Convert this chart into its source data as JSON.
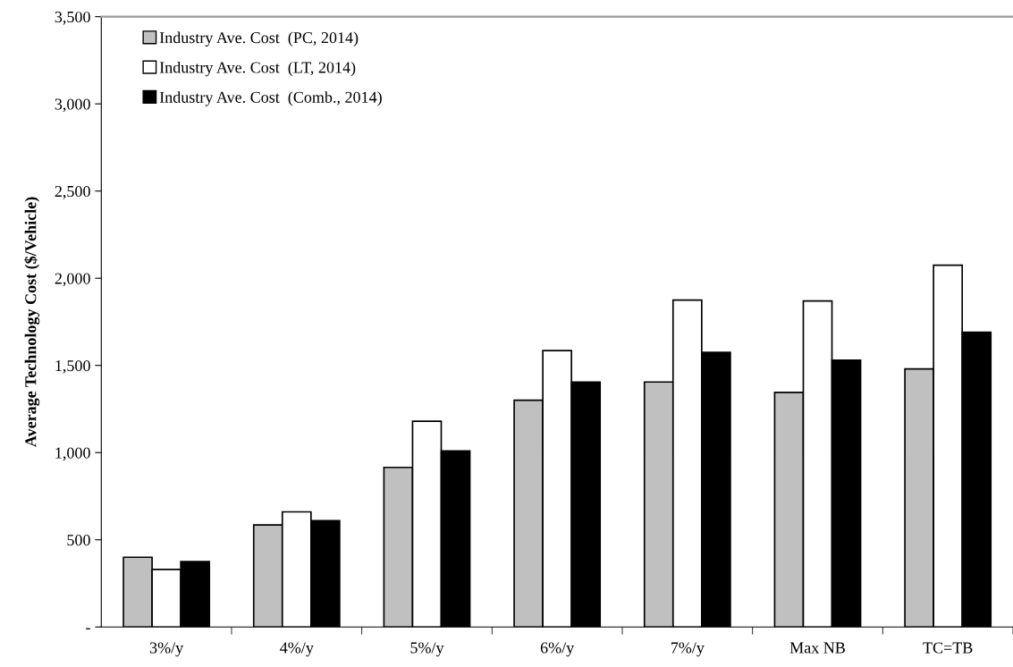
{
  "chart_data": {
    "type": "bar",
    "ylabel": "Average Technology Cost ($/Vehicle)",
    "categories": [
      "3%/y",
      "4%/y",
      "5%/y",
      "6%/y",
      "7%/y",
      "Max NB",
      "TC=TB"
    ],
    "series": [
      {
        "name": "Industry Ave. Cost  (PC, 2014)",
        "color": "#c0c0c0",
        "values": [
          400,
          585,
          915,
          1300,
          1405,
          1345,
          1480
        ]
      },
      {
        "name": "Industry Ave. Cost  (LT, 2014)",
        "color": "#ffffff",
        "values": [
          330,
          660,
          1180,
          1585,
          1875,
          1870,
          2075
        ]
      },
      {
        "name": "Industry Ave. Cost  (Comb., 2014)",
        "color": "#000000",
        "values": [
          375,
          610,
          1010,
          1405,
          1575,
          1530,
          1690
        ]
      }
    ],
    "ylim": [
      0,
      3500
    ],
    "yticks": [
      {
        "value": 0,
        "label": "-"
      },
      {
        "value": 500,
        "label": "500"
      },
      {
        "value": 1000,
        "label": "1,000"
      },
      {
        "value": 1500,
        "label": "1,500"
      },
      {
        "value": 2000,
        "label": "2,000"
      },
      {
        "value": 2500,
        "label": "2,500"
      },
      {
        "value": 3000,
        "label": "3,000"
      },
      {
        "value": 3500,
        "label": "3,500"
      }
    ],
    "grid": false,
    "legend": "top left"
  }
}
